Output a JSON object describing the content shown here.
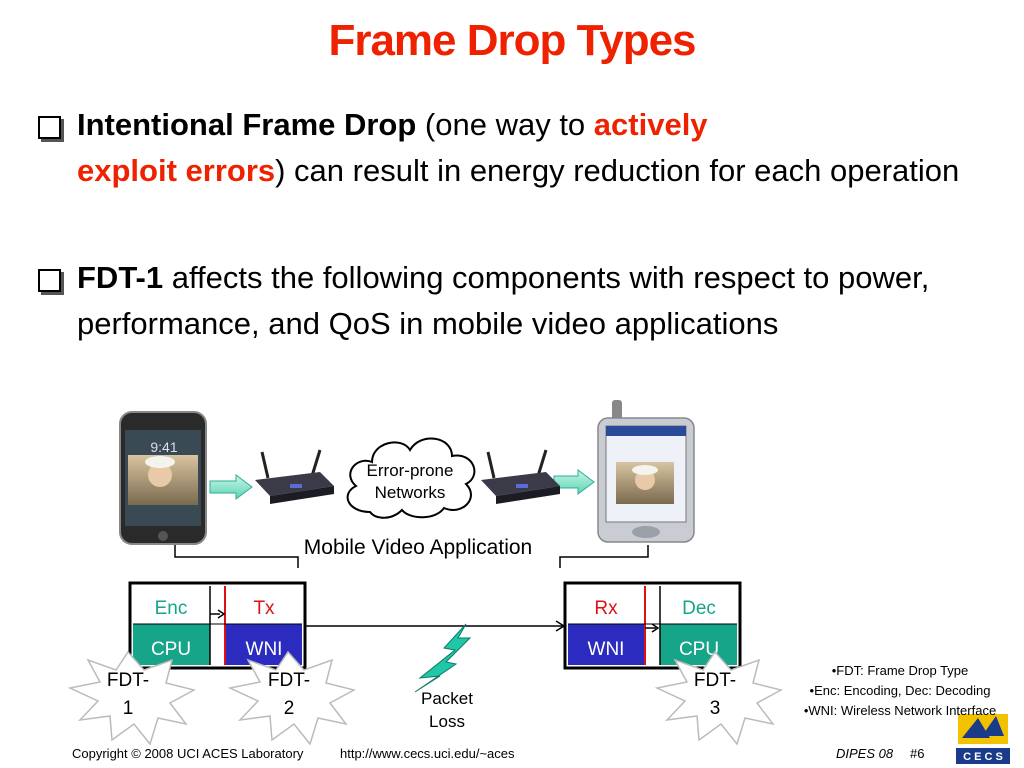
{
  "title": "Frame Drop Types",
  "bullets": [
    {
      "bold": "Intentional Frame Drop",
      "text1": " (one way to ",
      "emphasis1": "actively",
      "emphasis2": "exploit errors",
      "text2": ") can result in energy reduction for each operation"
    },
    {
      "bold": "FDT-1",
      "text1": " affects the following components with respect to power, performance, and QoS in mobile video applications"
    }
  ],
  "diagram": {
    "phone_time": "9:41",
    "cloud_label_line1": "Error-prone",
    "cloud_label_line2": "Networks",
    "app_label": "Mobile Video Application",
    "sender": {
      "enc": "Enc",
      "tx": "Tx",
      "cpu": "CPU",
      "wni": "WNI"
    },
    "receiver": {
      "rx": "Rx",
      "dec": "Dec",
      "wni": "WNI",
      "cpu": "CPU"
    },
    "packet_loss_line1": "Packet",
    "packet_loss_line2": "Loss",
    "fdt_bursts": [
      {
        "line1": "FDT-",
        "line2": "1"
      },
      {
        "line1": "FDT-",
        "line2": "2"
      },
      {
        "line1": "FDT-",
        "line2": "3"
      }
    ],
    "colors": {
      "green_cell": "#17a58a",
      "blue_cell": "#2b2bbf",
      "enc_text": "#17a58a",
      "tx_text": "#dd1111"
    }
  },
  "notes": [
    "•FDT: Frame Drop Type",
    "•Enc: Encoding, Dec: Decoding",
    "•WNI: Wireless Network Interface"
  ],
  "footer": {
    "copyright": "Copyright © 2008  UCI ACES Laboratory",
    "url": "http://www.cecs.uci.edu/~aces",
    "venue": "DIPES 08",
    "slide_number": "#6",
    "logo_text": "C E C S"
  }
}
